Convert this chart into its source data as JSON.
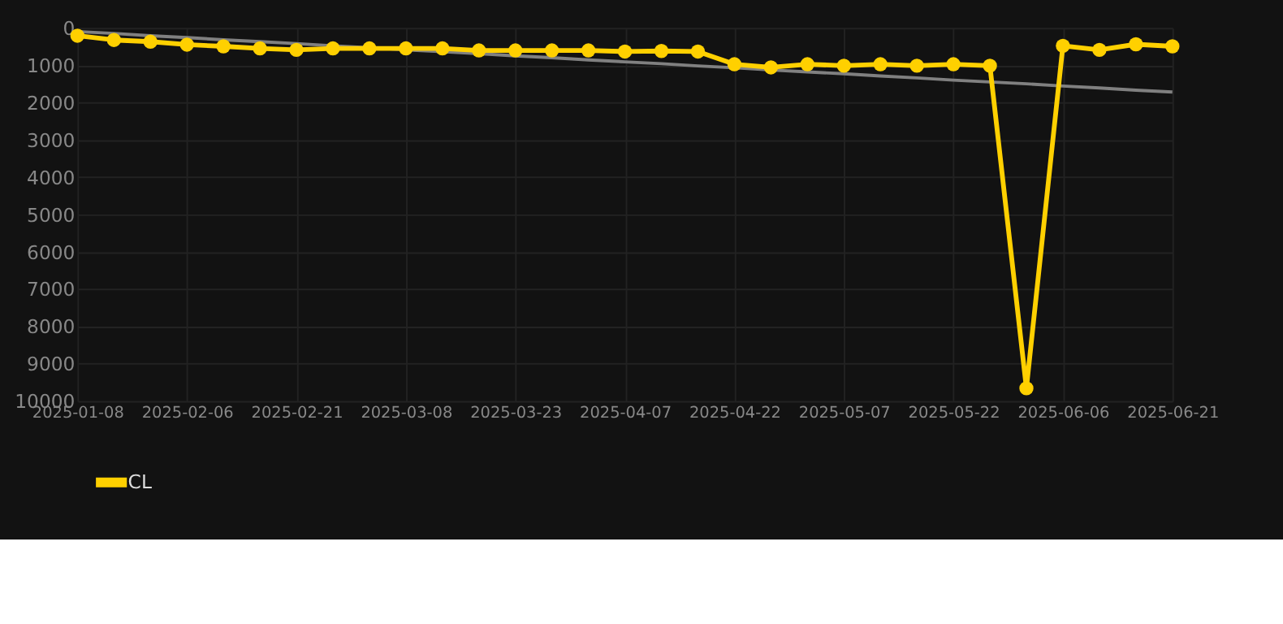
{
  "chart_data": {
    "type": "line",
    "categories": [
      "2025-01-08",
      null,
      null,
      "2025-02-06",
      null,
      null,
      "2025-02-21",
      null,
      null,
      "2025-03-08",
      null,
      null,
      "2025-03-23",
      null,
      null,
      "2025-04-07",
      null,
      null,
      "2025-04-22",
      null,
      null,
      "2025-05-07",
      null,
      null,
      "2025-05-22",
      null,
      null,
      "2025-06-06",
      null,
      null,
      "2025-06-21"
    ],
    "series": [
      {
        "name": "CL",
        "color": "#ffd000",
        "marker": "circle",
        "line_style": "solid",
        "values": [
          210,
          325,
          370,
          450,
          495,
          550,
          590,
          550,
          550,
          550,
          550,
          605,
          605,
          605,
          605,
          635,
          620,
          635,
          975,
          1060,
          975,
          1015,
          975,
          1015,
          975,
          1015,
          9660,
          480,
          590,
          440,
          495
        ]
      },
      {
        "type": "line",
        "color": "#808080",
        "marker": "none",
        "values": [
          100,
          150,
          210,
          260,
          320,
          370,
          420,
          480,
          530,
          590,
          640,
          690,
          750,
          800,
          860,
          910,
          960,
          1020,
          1070,
          1130,
          1180,
          1230,
          1290,
          1340,
          1400,
          1450,
          1500,
          1560,
          1610,
          1670,
          1720
        ]
      }
    ],
    "ylim": [
      10000,
      0
    ],
    "yticks": [
      0,
      1000,
      2000,
      3000,
      4000,
      5000,
      6000,
      7000,
      8000,
      9000,
      10000
    ],
    "grid": true,
    "legend": "bottom"
  }
}
